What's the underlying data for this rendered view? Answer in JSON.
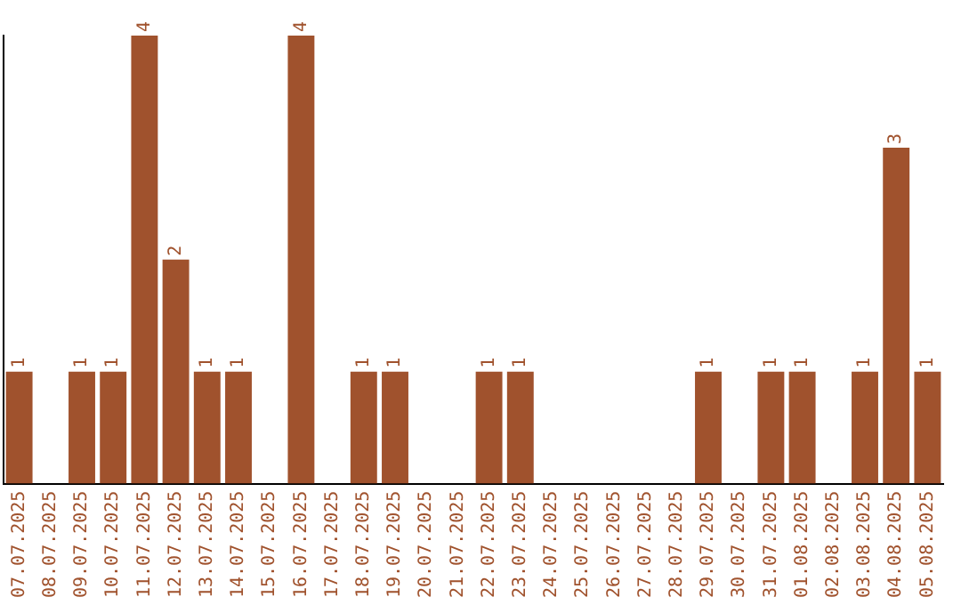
{
  "chart_data": {
    "type": "bar",
    "categories": [
      "07.07.2025",
      "08.07.2025",
      "09.07.2025",
      "10.07.2025",
      "11.07.2025",
      "12.07.2025",
      "13.07.2025",
      "14.07.2025",
      "15.07.2025",
      "16.07.2025",
      "17.07.2025",
      "18.07.2025",
      "19.07.2025",
      "20.07.2025",
      "21.07.2025",
      "22.07.2025",
      "23.07.2025",
      "24.07.2025",
      "25.07.2025",
      "26.07.2025",
      "27.07.2025",
      "28.07.2025",
      "29.07.2025",
      "30.07.2025",
      "31.07.2025",
      "01.08.2025",
      "02.08.2025",
      "03.08.2025",
      "04.08.2025",
      "05.08.2025"
    ],
    "values": [
      1,
      0,
      1,
      1,
      4,
      2,
      1,
      1,
      0,
      4,
      0,
      1,
      1,
      0,
      0,
      1,
      1,
      0,
      0,
      0,
      0,
      0,
      1,
      0,
      1,
      1,
      0,
      1,
      3,
      1
    ],
    "value_labels": [
      "1",
      null,
      "1",
      "1",
      "4",
      "2",
      "1",
      "1",
      null,
      "4",
      null,
      "1",
      "1",
      null,
      null,
      "1",
      "1",
      null,
      null,
      null,
      null,
      null,
      "1",
      null,
      "1",
      "1",
      null,
      "1",
      "3",
      "1"
    ],
    "color": "#a0522d",
    "ylim": [
      0,
      4
    ],
    "tick_labels": "x",
    "grid": false,
    "legend": false
  }
}
